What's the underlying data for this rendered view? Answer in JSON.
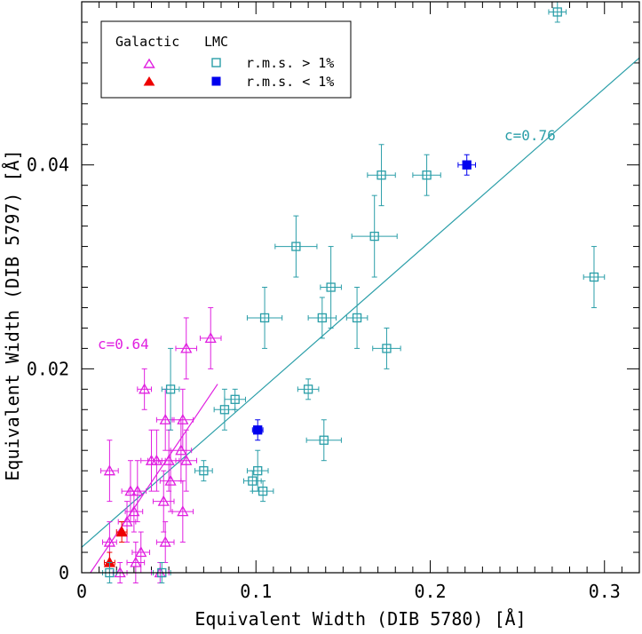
{
  "chart_data": {
    "type": "scatter",
    "title": "",
    "xlabel": "Equivalent Width (DIB 5780) [Å]",
    "ylabel": "Equivalent Width (DIB 5797) [Å]",
    "xlim": [
      0,
      0.32
    ],
    "ylim": [
      0,
      0.056
    ],
    "x_ticks": [
      0,
      0.1,
      0.2,
      0.3
    ],
    "x_tick_labels": [
      "0",
      "0.1",
      "0.2",
      "0.3"
    ],
    "y_ticks": [
      0,
      0.02,
      0.04
    ],
    "y_tick_labels": [
      "0",
      "0.02",
      "0.04"
    ],
    "legend": {
      "placement": "top-left",
      "headers": [
        "Galactic",
        "LMC"
      ],
      "entries": [
        {
          "label": "r.m.s. > 1%",
          "marker": "open",
          "galactic_color": "#e020e0",
          "lmc_color": "#2a9ea8"
        },
        {
          "label": "r.m.s. < 1%",
          "marker": "filled",
          "galactic_color": "#ee0000",
          "lmc_color": "#0000ee"
        }
      ]
    },
    "fits": [
      {
        "name": "Galactic fit",
        "label": "c=0.64",
        "color": "#e020e0",
        "x": [
          0.005,
          0.078
        ],
        "y": [
          0.0,
          0.0185
        ]
      },
      {
        "name": "LMC fit",
        "label": "c=0.76",
        "color": "#2a9ea8",
        "x": [
          0.0,
          0.32
        ],
        "y": [
          0.0025,
          0.0505
        ]
      }
    ],
    "series": [
      {
        "name": "Galactic r.m.s. > 1%",
        "marker": "triangle-open",
        "color": "#e020e0",
        "points": [
          {
            "x": 0.016,
            "y": 0.01,
            "xe": 0.005,
            "ye": 0.003
          },
          {
            "x": 0.016,
            "y": 0.003,
            "xe": 0.004,
            "ye": 0.002
          },
          {
            "x": 0.022,
            "y": 0.0,
            "xe": 0.004,
            "ye": 0.001
          },
          {
            "x": 0.026,
            "y": 0.005,
            "xe": 0.005,
            "ye": 0.002
          },
          {
            "x": 0.028,
            "y": 0.008,
            "xe": 0.005,
            "ye": 0.003
          },
          {
            "x": 0.03,
            "y": 0.006,
            "xe": 0.005,
            "ye": 0.002
          },
          {
            "x": 0.031,
            "y": 0.001,
            "xe": 0.005,
            "ye": 0.002
          },
          {
            "x": 0.032,
            "y": 0.008,
            "xe": 0.005,
            "ye": 0.003
          },
          {
            "x": 0.034,
            "y": 0.002,
            "xe": 0.005,
            "ye": 0.002
          },
          {
            "x": 0.036,
            "y": 0.018,
            "xe": 0.004,
            "ye": 0.002
          },
          {
            "x": 0.04,
            "y": 0.011,
            "xe": 0.006,
            "ye": 0.003
          },
          {
            "x": 0.043,
            "y": 0.011,
            "xe": 0.005,
            "ye": 0.003
          },
          {
            "x": 0.045,
            "y": 0.0,
            "xe": 0.005,
            "ye": 0.001
          },
          {
            "x": 0.047,
            "y": 0.007,
            "xe": 0.006,
            "ye": 0.003
          },
          {
            "x": 0.048,
            "y": 0.003,
            "xe": 0.005,
            "ye": 0.002
          },
          {
            "x": 0.048,
            "y": 0.015,
            "xe": 0.005,
            "ye": 0.003
          },
          {
            "x": 0.05,
            "y": 0.011,
            "xe": 0.006,
            "ye": 0.003
          },
          {
            "x": 0.051,
            "y": 0.009,
            "xe": 0.006,
            "ye": 0.003
          },
          {
            "x": 0.057,
            "y": 0.012,
            "xe": 0.006,
            "ye": 0.003
          },
          {
            "x": 0.058,
            "y": 0.015,
            "xe": 0.006,
            "ye": 0.003
          },
          {
            "x": 0.058,
            "y": 0.006,
            "xe": 0.006,
            "ye": 0.003
          },
          {
            "x": 0.06,
            "y": 0.011,
            "xe": 0.006,
            "ye": 0.003
          },
          {
            "x": 0.06,
            "y": 0.022,
            "xe": 0.006,
            "ye": 0.003
          },
          {
            "x": 0.074,
            "y": 0.023,
            "xe": 0.006,
            "ye": 0.003
          }
        ]
      },
      {
        "name": "Galactic r.m.s. < 1%",
        "marker": "triangle-filled",
        "color": "#ee0000",
        "points": [
          {
            "x": 0.016,
            "y": 0.001,
            "xe": 0.003,
            "ye": 0.001
          },
          {
            "x": 0.023,
            "y": 0.004,
            "xe": 0.003,
            "ye": 0.001
          }
        ]
      },
      {
        "name": "LMC r.m.s. > 1%",
        "marker": "square-open",
        "color": "#2a9ea8",
        "points": [
          {
            "x": 0.016,
            "y": 0.0,
            "xe": 0.004,
            "ye": 0.001
          },
          {
            "x": 0.046,
            "y": 0.0,
            "xe": 0.005,
            "ye": 0.001
          },
          {
            "x": 0.051,
            "y": 0.018,
            "xe": 0.005,
            "ye": 0.004
          },
          {
            "x": 0.07,
            "y": 0.01,
            "xe": 0.005,
            "ye": 0.001
          },
          {
            "x": 0.082,
            "y": 0.016,
            "xe": 0.006,
            "ye": 0.002
          },
          {
            "x": 0.088,
            "y": 0.017,
            "xe": 0.006,
            "ye": 0.001
          },
          {
            "x": 0.098,
            "y": 0.009,
            "xe": 0.005,
            "ye": 0.001
          },
          {
            "x": 0.101,
            "y": 0.01,
            "xe": 0.006,
            "ye": 0.002
          },
          {
            "x": 0.104,
            "y": 0.008,
            "xe": 0.006,
            "ye": 0.001
          },
          {
            "x": 0.105,
            "y": 0.025,
            "xe": 0.01,
            "ye": 0.003
          },
          {
            "x": 0.123,
            "y": 0.032,
            "xe": 0.012,
            "ye": 0.003
          },
          {
            "x": 0.13,
            "y": 0.018,
            "xe": 0.006,
            "ye": 0.001
          },
          {
            "x": 0.138,
            "y": 0.025,
            "xe": 0.008,
            "ye": 0.002
          },
          {
            "x": 0.139,
            "y": 0.013,
            "xe": 0.01,
            "ye": 0.002
          },
          {
            "x": 0.143,
            "y": 0.028,
            "xe": 0.006,
            "ye": 0.004
          },
          {
            "x": 0.158,
            "y": 0.025,
            "xe": 0.006,
            "ye": 0.003
          },
          {
            "x": 0.168,
            "y": 0.033,
            "xe": 0.013,
            "ye": 0.004
          },
          {
            "x": 0.172,
            "y": 0.039,
            "xe": 0.008,
            "ye": 0.003
          },
          {
            "x": 0.175,
            "y": 0.022,
            "xe": 0.008,
            "ye": 0.002
          },
          {
            "x": 0.198,
            "y": 0.039,
            "xe": 0.008,
            "ye": 0.002
          },
          {
            "x": 0.273,
            "y": 0.055,
            "xe": 0.005,
            "ye": 0.001
          },
          {
            "x": 0.294,
            "y": 0.029,
            "xe": 0.006,
            "ye": 0.003
          }
        ]
      },
      {
        "name": "LMC r.m.s. < 1%",
        "marker": "square-filled",
        "color": "#0000ee",
        "points": [
          {
            "x": 0.101,
            "y": 0.014,
            "xe": 0.003,
            "ye": 0.001
          },
          {
            "x": 0.221,
            "y": 0.04,
            "xe": 0.005,
            "ye": 0.001
          }
        ]
      }
    ]
  }
}
